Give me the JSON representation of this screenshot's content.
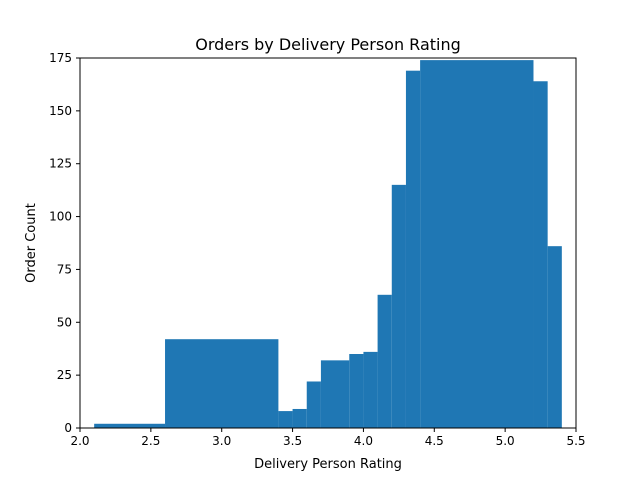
{
  "chart_data": {
    "type": "bar",
    "title": "Orders by Delivery Person Rating",
    "xlabel": "Delivery Person Rating",
    "ylabel": "Order Count",
    "xlim": [
      2.0,
      5.5
    ],
    "ylim": [
      0,
      175
    ],
    "grid": false,
    "xticks": [
      2.0,
      2.5,
      3.0,
      3.5,
      4.0,
      4.5,
      5.0,
      5.5
    ],
    "xtick_labels": [
      "2.0",
      "2.5",
      "3.0",
      "3.5",
      "4.0",
      "4.5",
      "5.0",
      "5.5"
    ],
    "yticks": [
      0,
      25,
      50,
      75,
      100,
      125,
      150,
      175
    ],
    "ytick_labels": [
      "0",
      "25",
      "50",
      "75",
      "100",
      "125",
      "150",
      "175"
    ],
    "bar_color": "#1f77b4",
    "bars": [
      {
        "x0": 2.1,
        "x1": 2.6,
        "value": 2
      },
      {
        "x0": 2.6,
        "x1": 3.4,
        "value": 42
      },
      {
        "x0": 3.4,
        "x1": 3.5,
        "value": 8
      },
      {
        "x0": 3.5,
        "x1": 3.6,
        "value": 9
      },
      {
        "x0": 3.6,
        "x1": 3.7,
        "value": 22
      },
      {
        "x0": 3.7,
        "x1": 3.9,
        "value": 32
      },
      {
        "x0": 3.9,
        "x1": 4.0,
        "value": 35
      },
      {
        "x0": 4.0,
        "x1": 4.1,
        "value": 36
      },
      {
        "x0": 4.1,
        "x1": 4.2,
        "value": 63
      },
      {
        "x0": 4.2,
        "x1": 4.3,
        "value": 115
      },
      {
        "x0": 4.3,
        "x1": 4.4,
        "value": 169
      },
      {
        "x0": 4.4,
        "x1": 5.2,
        "value": 174
      },
      {
        "x0": 5.2,
        "x1": 5.3,
        "value": 164
      },
      {
        "x0": 5.3,
        "x1": 5.4,
        "value": 86
      }
    ]
  }
}
